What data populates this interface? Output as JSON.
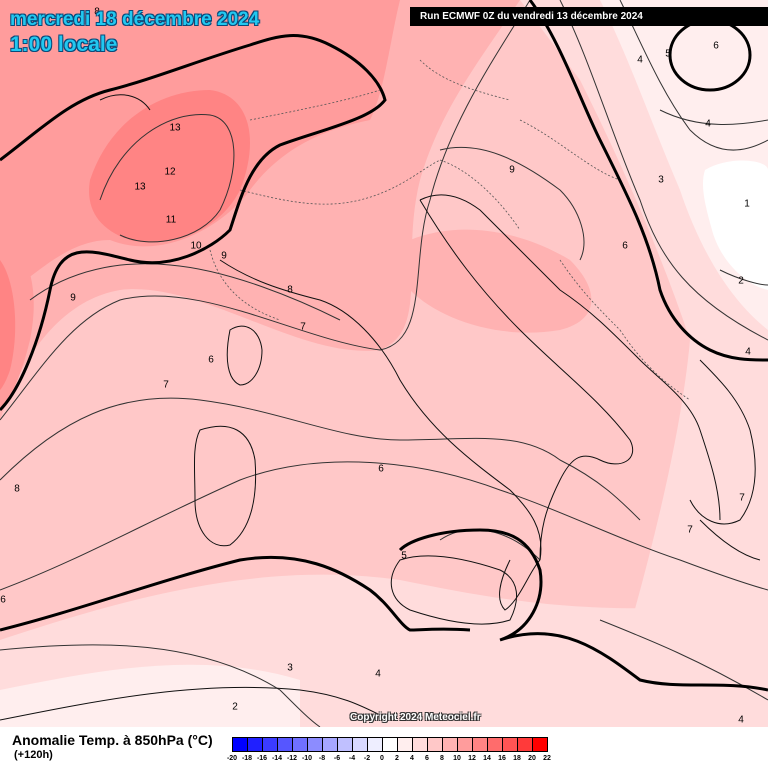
{
  "header": {
    "date_title": "mercredi 18 décembre 2024",
    "time_title": "1:00 locale",
    "run_info": "Run ECMWF 0Z du vendredi 13 décembre 2024"
  },
  "footer": {
    "copyright": "Copyright 2024 Meteociel.fr",
    "legend_title": "Anomalie Temp. à 850hPa (°C)",
    "forecast_hour": "(+120h)"
  },
  "legend": {
    "ticks": [
      "-20",
      "-18",
      "-16",
      "-14",
      "-12",
      "-10",
      "-8",
      "-6",
      "-4",
      "-2",
      "0",
      "2",
      "4",
      "6",
      "8",
      "10",
      "12",
      "14",
      "16",
      "18",
      "20",
      "22"
    ],
    "colors": [
      "#0000ff",
      "#2020ff",
      "#3b3bff",
      "#5656ff",
      "#7070ff",
      "#8c8cff",
      "#a6a6ff",
      "#c0c0ff",
      "#d8d8ff",
      "#eeeeff",
      "#ffffff",
      "#ffeeee",
      "#ffdcdc",
      "#ffc8c8",
      "#ffb2b2",
      "#ff9c9c",
      "#ff8484",
      "#ff6c6c",
      "#ff5454",
      "#ff3a3a",
      "#ff0000"
    ]
  },
  "contour_labels": [
    {
      "text": "13"
    },
    {
      "text": "13"
    },
    {
      "text": "12"
    },
    {
      "text": "11"
    },
    {
      "text": "10"
    },
    {
      "text": "9"
    },
    {
      "text": "9"
    },
    {
      "text": "9"
    },
    {
      "text": "8"
    },
    {
      "text": "8"
    },
    {
      "text": "8"
    },
    {
      "text": "7"
    },
    {
      "text": "7"
    },
    {
      "text": "7"
    },
    {
      "text": "7"
    },
    {
      "text": "6"
    },
    {
      "text": "6"
    },
    {
      "text": "6"
    },
    {
      "text": "6"
    },
    {
      "text": "6"
    },
    {
      "text": "5"
    },
    {
      "text": "5"
    },
    {
      "text": "4"
    },
    {
      "text": "4"
    },
    {
      "text": "4"
    },
    {
      "text": "4"
    },
    {
      "text": "4"
    },
    {
      "text": "3"
    },
    {
      "text": "3"
    },
    {
      "text": "2"
    },
    {
      "text": "2"
    },
    {
      "text": "1"
    }
  ]
}
